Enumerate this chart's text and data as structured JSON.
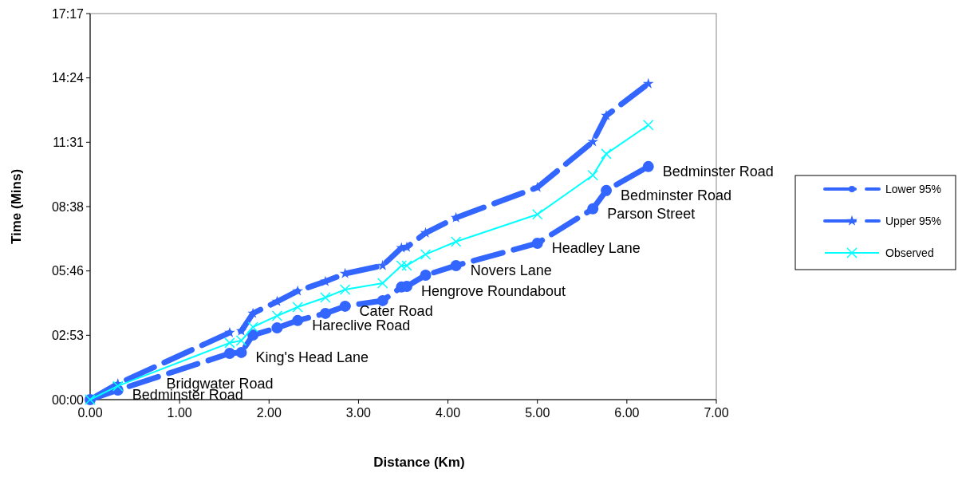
{
  "chart_data": {
    "type": "line",
    "xlabel": "Distance (Km)",
    "ylabel": "Time (Mins)",
    "x": [
      0,
      0.31,
      1.56,
      1.69,
      1.82,
      2.09,
      2.32,
      2.63,
      2.85,
      3.27,
      3.48,
      3.54,
      3.75,
      4.09,
      5.0,
      5.62,
      5.77,
      6.24
    ],
    "series": [
      {
        "name": "Lower 95%",
        "color": "#3366ff",
        "marker": "circle",
        "line_style": "dashed",
        "values": [
          0,
          0.43,
          2.07,
          2.11,
          2.89,
          3.21,
          3.54,
          3.86,
          4.18,
          4.43,
          5.04,
          5.07,
          5.57,
          6.0,
          7.0,
          8.54,
          9.36,
          10.43
        ]
      },
      {
        "name": "Upper 95%",
        "color": "#3366ff",
        "marker": "star",
        "line_style": "dashed",
        "values": [
          0,
          0.71,
          3.0,
          3.07,
          3.86,
          4.39,
          4.86,
          5.29,
          5.64,
          6.0,
          6.79,
          6.82,
          7.46,
          8.14,
          9.5,
          11.54,
          12.71,
          14.14
        ]
      },
      {
        "name": "Observed",
        "color": "#00ffff",
        "marker": "cross",
        "line_style": "solid",
        "values": [
          0,
          0.61,
          2.54,
          2.64,
          3.25,
          3.75,
          4.14,
          4.57,
          4.93,
          5.21,
          6.0,
          6.0,
          6.5,
          7.07,
          8.29,
          10.04,
          11.0,
          12.29
        ]
      }
    ],
    "annotations": [
      {
        "text": "Bedminster Road",
        "x": 0.31,
        "y": 0.43
      },
      {
        "text": "Bridgwater Road",
        "x": 0.69,
        "y": 0.93
      },
      {
        "text": "King's Head Lane",
        "x": 1.69,
        "y": 2.11
      },
      {
        "text": "Hareclive Road",
        "x": 2.32,
        "y": 3.54
      },
      {
        "text": "Cater Road",
        "x": 2.85,
        "y": 4.18
      },
      {
        "text": "Hengrove Roundabout",
        "x": 3.54,
        "y": 5.07
      },
      {
        "text": "Novers Lane",
        "x": 4.09,
        "y": 6.0
      },
      {
        "text": "Headley Lane",
        "x": 5.0,
        "y": 7.0
      },
      {
        "text": "Parson Street",
        "x": 5.62,
        "y": 8.54
      },
      {
        "text": "Bedminster Road",
        "x": 5.77,
        "y": 9.36
      },
      {
        "text": "Bedminster Road",
        "x": 6.24,
        "y": 10.43
      }
    ],
    "xlim": [
      0,
      7
    ],
    "xticks": [
      {
        "value": 0,
        "label": "0.00"
      },
      {
        "value": 1,
        "label": "1.00"
      },
      {
        "value": 2,
        "label": "2.00"
      },
      {
        "value": 3,
        "label": "3.00"
      },
      {
        "value": 4,
        "label": "4.00"
      },
      {
        "value": 5,
        "label": "5.00"
      },
      {
        "value": 6,
        "label": "6.00"
      },
      {
        "value": 7,
        "label": "7.00"
      }
    ],
    "ylim": [
      0,
      17.28
    ],
    "yticks": [
      {
        "value": 0,
        "label": "00:00"
      },
      {
        "value": 2.88,
        "label": "02:53"
      },
      {
        "value": 5.76,
        "label": "05:46"
      },
      {
        "value": 8.64,
        "label": "08:38"
      },
      {
        "value": 11.52,
        "label": "11:31"
      },
      {
        "value": 14.4,
        "label": "14:24"
      },
      {
        "value": 17.28,
        "label": "17:17"
      }
    ],
    "grid": false,
    "legend": "right"
  }
}
